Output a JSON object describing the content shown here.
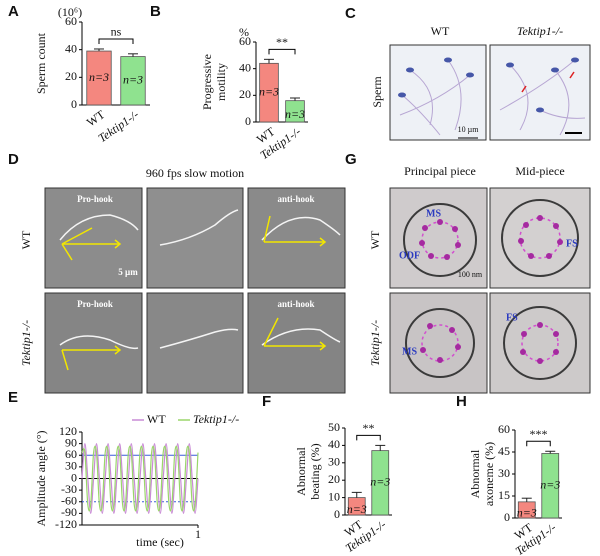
{
  "panel_labels": [
    "A",
    "B",
    "C",
    "D",
    "E",
    "F",
    "G",
    "H"
  ],
  "images": {
    "C": {
      "columns": [
        "WT",
        "Tektip1-/-"
      ],
      "row": "Sperm",
      "scale": "10 µm"
    },
    "D": {
      "title": "960 fps slow motion",
      "rows": [
        "WT",
        "Tektip1-/-"
      ],
      "frame_labels": [
        "Pro-hook",
        "anti-hook"
      ],
      "scale": "5 µm"
    },
    "G": {
      "columns": [
        "Principal piece",
        "Mid-piece"
      ],
      "rows": [
        "WT",
        "Tektip1-/-"
      ],
      "labels": [
        "MS",
        "ODF",
        "FS",
        "MS",
        "FS"
      ],
      "scale": "100 nm"
    }
  },
  "chart_data": [
    {
      "type": "bar",
      "y_label": [
        "Sperm count"
      ],
      "y_unit": "(10⁶)",
      "categories": [
        "WT",
        "Tektip1-/-"
      ],
      "values": [
        39,
        35
      ],
      "errors": [
        1.5,
        2
      ],
      "colors": [
        "#f4877f",
        "#8fe28f"
      ],
      "bar_annotations": [
        "n=3",
        "n=3"
      ],
      "significance": "ns",
      "ylim": [
        0,
        60
      ],
      "yticks": [
        0,
        20,
        40,
        60
      ]
    },
    {
      "type": "bar",
      "y_label": [
        "Progressive",
        "motility"
      ],
      "y_unit": "%",
      "categories": [
        "WT",
        "Tektip1-/-"
      ],
      "values": [
        44,
        16
      ],
      "errors": [
        3,
        2
      ],
      "colors": [
        "#f4877f",
        "#8fe28f"
      ],
      "bar_annotations": [
        "n=3",
        "n=3"
      ],
      "significance": "**",
      "ylim": [
        0,
        60
      ],
      "yticks": [
        0,
        20,
        40,
        60
      ]
    },
    {
      "type": "line",
      "y_label": [
        "Amplitude angle (°)"
      ],
      "x_label": "time (sec)",
      "x": [
        0,
        0.025,
        0.05,
        0.075,
        0.1,
        0.125,
        0.15,
        0.175,
        0.2,
        0.225,
        0.25,
        0.275,
        0.3,
        0.325,
        0.35,
        0.375,
        0.4,
        0.425,
        0.45,
        0.475,
        0.5,
        0.525,
        0.55,
        0.575,
        0.6,
        0.625,
        0.65,
        0.675,
        0.7,
        0.725,
        0.75,
        0.775,
        0.8,
        0.825,
        0.85,
        0.875,
        0.9,
        0.925,
        0.95,
        0.975,
        1
      ],
      "series": [
        {
          "name": "WT",
          "color": "#c98bd6",
          "values": [
            0,
            90,
            0,
            -90,
            0,
            90,
            0,
            -90,
            0,
            90,
            0,
            -90,
            0,
            90,
            0,
            -90,
            0,
            90,
            0,
            -90,
            0,
            90,
            0,
            -90,
            0,
            90,
            0,
            -90,
            0,
            90,
            0,
            -90,
            0,
            90,
            0,
            -90,
            0,
            90,
            0,
            -90,
            0
          ]
        },
        {
          "name": "Tektip1-/-",
          "color": "#9ad66a",
          "values": [
            67,
            67,
            -67,
            -67,
            67,
            67,
            -67,
            -67,
            67,
            67,
            -67,
            -67,
            67,
            67,
            -67,
            -67,
            67,
            67,
            -67,
            -67,
            67,
            67,
            -67,
            -67,
            67,
            67,
            -67,
            -67,
            67,
            67,
            -67,
            -67,
            67,
            67,
            -67,
            -67,
            67,
            67,
            -67,
            -67,
            67
          ]
        }
      ],
      "reference_lines": [
        {
          "value": 60,
          "color": "#3b5bdb"
        },
        {
          "value": 0,
          "color": "#000000"
        },
        {
          "value": -60,
          "color": "#3b5bdb"
        }
      ],
      "xlim": [
        0,
        1
      ],
      "xticks": [
        1
      ],
      "ylim": [
        -120,
        120
      ],
      "yticks": [
        -120,
        -90,
        -60,
        -30,
        0,
        30,
        60,
        90,
        120
      ]
    },
    {
      "type": "bar",
      "y_label": [
        "Abnormal",
        "beating (%)"
      ],
      "categories": [
        "WT",
        "Tektip1-/-"
      ],
      "values": [
        10,
        37
      ],
      "errors": [
        3,
        3
      ],
      "colors": [
        "#f4877f",
        "#8fe28f"
      ],
      "bar_annotations": [
        "n=3",
        "n=3"
      ],
      "significance": "**",
      "ylim": [
        0,
        50
      ],
      "yticks": [
        0,
        10,
        20,
        30,
        40,
        50
      ]
    },
    {
      "type": "bar",
      "y_label": [
        "Abnormal",
        "axoneme (%)"
      ],
      "categories": [
        "WT",
        "Tektip1-/-"
      ],
      "values": [
        11,
        44
      ],
      "errors": [
        2.5,
        1.5
      ],
      "colors": [
        "#f4877f",
        "#8fe28f"
      ],
      "bar_annotations": [
        "n=3",
        "n=3"
      ],
      "significance": "***",
      "ylim": [
        0,
        60
      ],
      "yticks": [
        0,
        15,
        30,
        45,
        60
      ]
    }
  ]
}
